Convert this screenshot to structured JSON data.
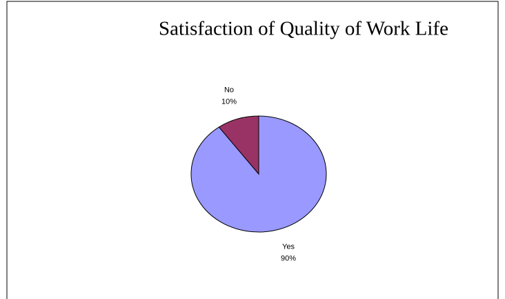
{
  "chart_data": {
    "type": "pie",
    "title": "Satisfaction of Quality of Work Life",
    "categories": [
      "Yes",
      "No"
    ],
    "values": [
      90,
      10
    ],
    "value_labels": [
      "90%",
      "10%"
    ],
    "colors": [
      "#9999ff",
      "#993366"
    ]
  }
}
